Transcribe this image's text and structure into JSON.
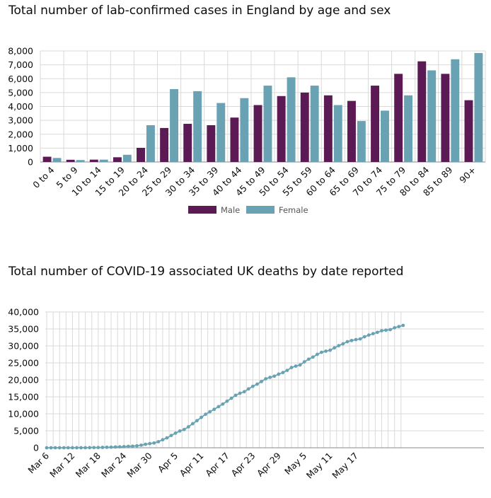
{
  "colors": {
    "male": "#5b1a54",
    "female": "#69a3b3",
    "deaths_line": "#69a3b3",
    "grid": "#d9d9d9"
  },
  "chart_data": [
    {
      "type": "bar",
      "title": "Total number of lab-confirmed cases in England by age and sex",
      "categories": [
        "0 to 4",
        "5 to 9",
        "10 to 14",
        "15 to 19",
        "20 to 24",
        "25 to 29",
        "30 to 34",
        "35 to 39",
        "40 to 44",
        "45 to 49",
        "50 to 54",
        "55 to 59",
        "60 to 64",
        "65 to 69",
        "70 to 74",
        "75 to 79",
        "80 to 84",
        "85 to 89",
        "90+"
      ],
      "series": [
        {
          "name": "Male",
          "values": [
            380,
            160,
            170,
            340,
            1020,
            2450,
            2750,
            2650,
            3200,
            4100,
            4750,
            5000,
            4800,
            4400,
            5500,
            6350,
            7250,
            6350,
            4450
          ]
        },
        {
          "name": "Female",
          "values": [
            290,
            140,
            170,
            520,
            2650,
            5250,
            5100,
            4250,
            4600,
            5500,
            6100,
            5500,
            4100,
            2950,
            3700,
            4800,
            6600,
            7400,
            7850
          ]
        }
      ],
      "ylim": [
        0,
        8000
      ],
      "yticks": [
        "0",
        "1,000",
        "2,000",
        "3,000",
        "4,000",
        "5,000",
        "6,000",
        "7,000",
        "8,000"
      ],
      "grid": true,
      "legend_position": "bottom-center"
    },
    {
      "type": "line",
      "title": "Total number of COVID-19 associated UK deaths by date reported",
      "x_tick_labels": [
        "Mar 6",
        "Mar 12",
        "Mar 18",
        "Mar 24",
        "Mar 30",
        "Apr 5",
        "Apr 11",
        "Apr 17",
        "Apr 23",
        "Apr 29",
        "May 5",
        "May 11",
        "May 17"
      ],
      "x_start": "Mar 6",
      "x_end": "May 21",
      "values": [
        0,
        1,
        2,
        3,
        5,
        7,
        9,
        10,
        11,
        21,
        35,
        55,
        71,
        103,
        144,
        177,
        233,
        281,
        335,
        422,
        463,
        578,
        759,
        1019,
        1228,
        1408,
        1789,
        2352,
        2921,
        3605,
        4313,
        4934,
        5373,
        6159,
        7097,
        7978,
        8958,
        9875,
        10612,
        11329,
        12107,
        12868,
        13729,
        14576,
        15464,
        16060,
        16509,
        17337,
        18100,
        18738,
        19506,
        20319,
        20732,
        21092,
        21678,
        22157,
        22792,
        23635,
        24055,
        24393,
        25302,
        26097,
        26711,
        27510,
        28131,
        28446,
        28734,
        29427,
        30076,
        30615,
        31241,
        31587,
        31855,
        32065,
        32692,
        33186,
        33614,
        33998,
        34466,
        34636,
        34796,
        35341,
        35704,
        36042
      ],
      "ylim": [
        0,
        40000
      ],
      "yticks": [
        "0",
        "5,000",
        "10,000",
        "15,000",
        "20,000",
        "25,000",
        "30,000",
        "35,000",
        "40,000"
      ],
      "grid": true
    }
  ]
}
